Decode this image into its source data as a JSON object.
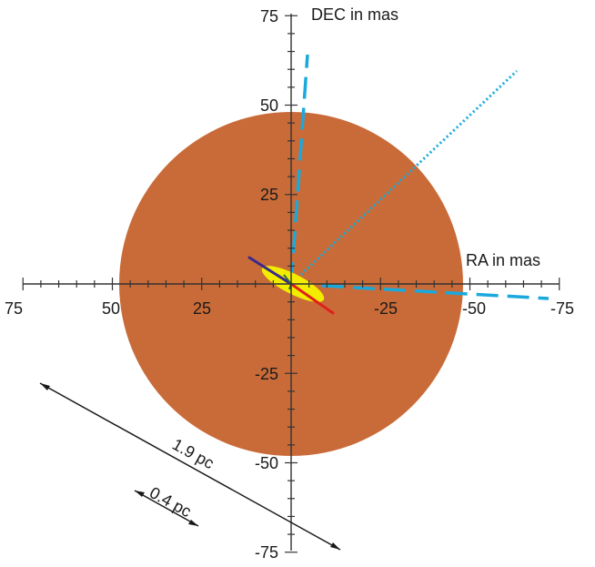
{
  "diagram": {
    "axis_labels": {
      "dec": "DEC in mas",
      "ra": "RA in mas"
    },
    "dec_ticks": [
      "75",
      "50",
      "25",
      "-25",
      "-50",
      "-75"
    ],
    "ra_ticks": [
      "75",
      "50",
      "25",
      "-25",
      "-50",
      "-75"
    ],
    "scale_bars": {
      "long": "1.9 pc",
      "short": "0.4 pc"
    },
    "colors": {
      "disk": "#c96b38",
      "cyan_lines": "#19a9dc",
      "yellow_blob": "#f2ec00",
      "red_jet": "#e0201c",
      "blue_jet": "#3a2a8c",
      "axes": "#333333"
    }
  }
}
